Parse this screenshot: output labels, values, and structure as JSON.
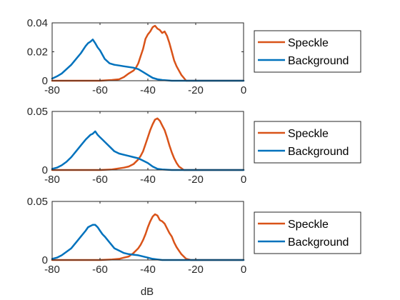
{
  "chart_data": {
    "type": "line",
    "xlabel": "dB",
    "xlim": [
      -80,
      0
    ],
    "xticks": [
      -80,
      -60,
      -40,
      -20,
      0
    ],
    "colors": {
      "speckle": "#D95319",
      "background": "#0072BD"
    },
    "legend_placement": "outside-right",
    "grid": false,
    "panels": [
      {
        "ylim": [
          0,
          0.04
        ],
        "yticks": [
          0,
          0.02,
          0.04
        ],
        "yticklabels": [
          "0",
          "0.02",
          "0.04"
        ],
        "legend": [
          "Speckle",
          "Background"
        ],
        "series": [
          {
            "name": "Speckle",
            "x": [
              -80,
              -60,
              -55,
              -52,
              -50,
              -48,
              -46,
              -45,
              -44,
              -43,
              -42,
              -41,
              -40,
              -39,
              -38,
              -37,
              -36,
              -35,
              -34,
              -33,
              -32,
              -31,
              -30,
              -29,
              -28,
              -27,
              -26,
              -25,
              -24,
              -20,
              0
            ],
            "y": [
              0,
              0,
              0.0005,
              0.001,
              0.0025,
              0.005,
              0.007,
              0.009,
              0.012,
              0.017,
              0.022,
              0.029,
              0.032,
              0.034,
              0.037,
              0.038,
              0.036,
              0.035,
              0.033,
              0.034,
              0.031,
              0.026,
              0.02,
              0.014,
              0.01,
              0.007,
              0.004,
              0.002,
              0,
              0,
              0
            ]
          },
          {
            "name": "Background",
            "x": [
              -80,
              -78,
              -76,
              -74,
              -72,
              -70,
              -68,
              -66,
              -65,
              -64,
              -63,
              -62,
              -61,
              -60,
              -59,
              -58,
              -56,
              -54,
              -52,
              -50,
              -48,
              -46,
              -44,
              -42,
              -40,
              -38,
              -36,
              -34,
              -30,
              -25,
              0
            ],
            "y": [
              0.0015,
              0.003,
              0.005,
              0.008,
              0.011,
              0.015,
              0.019,
              0.024,
              0.026,
              0.027,
              0.0285,
              0.026,
              0.023,
              0.021,
              0.018,
              0.015,
              0.012,
              0.011,
              0.0105,
              0.01,
              0.0095,
              0.009,
              0.008,
              0.006,
              0.004,
              0.002,
              0.001,
              0.0005,
              0,
              0,
              0
            ]
          }
        ]
      },
      {
        "ylim": [
          0,
          0.05
        ],
        "yticks": [
          0,
          0.05
        ],
        "yticklabels": [
          "0",
          "0.05"
        ],
        "legend": [
          "Speckle",
          "Background"
        ],
        "series": [
          {
            "name": "Speckle",
            "x": [
              -80,
              -60,
              -55,
              -50,
              -48,
              -46,
              -44,
              -43,
              -42,
              -41,
              -40,
              -39,
              -38,
              -37,
              -36,
              -35,
              -34,
              -33,
              -32,
              -31,
              -30,
              -29,
              -28,
              -27,
              -26,
              -25,
              -20,
              0
            ],
            "y": [
              0,
              0,
              0.0005,
              0.002,
              0.003,
              0.005,
              0.009,
              0.012,
              0.016,
              0.022,
              0.028,
              0.034,
              0.039,
              0.043,
              0.044,
              0.042,
              0.038,
              0.034,
              0.028,
              0.021,
              0.015,
              0.01,
              0.006,
              0.003,
              0.0015,
              0,
              0,
              0
            ]
          },
          {
            "name": "Background",
            "x": [
              -80,
              -78,
              -76,
              -74,
              -72,
              -70,
              -68,
              -66,
              -64,
              -63,
              -62,
              -61,
              -60,
              -59,
              -58,
              -56,
              -54,
              -52,
              -50,
              -48,
              -46,
              -44,
              -42,
              -40,
              -38,
              -36,
              -34,
              -30,
              0
            ],
            "y": [
              0.001,
              0.002,
              0.004,
              0.007,
              0.011,
              0.016,
              0.021,
              0.026,
              0.03,
              0.031,
              0.033,
              0.03,
              0.028,
              0.026,
              0.024,
              0.02,
              0.016,
              0.014,
              0.013,
              0.012,
              0.011,
              0.01,
              0.008,
              0.006,
              0.003,
              0.001,
              0.0005,
              0,
              0
            ]
          }
        ]
      },
      {
        "ylim": [
          0,
          0.05
        ],
        "yticks": [
          0,
          0.05
        ],
        "yticklabels": [
          "0",
          "0.05"
        ],
        "legend": [
          "Speckle",
          "Background"
        ],
        "series": [
          {
            "name": "Speckle",
            "x": [
              -80,
              -60,
              -55,
              -52,
              -50,
              -48,
              -46,
              -45,
              -44,
              -43,
              -42,
              -41,
              -40,
              -39,
              -38,
              -37,
              -36,
              -35,
              -34,
              -33,
              -32,
              -31,
              -30,
              -29,
              -28,
              -27,
              -26,
              -25,
              -24,
              -22,
              0
            ],
            "y": [
              0,
              0,
              0.0005,
              0.001,
              0.002,
              0.003,
              0.006,
              0.008,
              0.01,
              0.013,
              0.017,
              0.022,
              0.028,
              0.033,
              0.037,
              0.039,
              0.038,
              0.034,
              0.033,
              0.031,
              0.027,
              0.023,
              0.02,
              0.015,
              0.011,
              0.008,
              0.005,
              0.003,
              0.001,
              0,
              0
            ]
          },
          {
            "name": "Background",
            "x": [
              -80,
              -78,
              -76,
              -74,
              -72,
              -70,
              -68,
              -66,
              -65,
              -64,
              -63,
              -62,
              -61,
              -60,
              -59,
              -58,
              -56,
              -54,
              -52,
              -50,
              -48,
              -46,
              -44,
              -42,
              -40,
              -38,
              -36,
              -34,
              -30,
              0
            ],
            "y": [
              0.001,
              0.002,
              0.004,
              0.007,
              0.01,
              0.015,
              0.02,
              0.025,
              0.028,
              0.029,
              0.03,
              0.03,
              0.028,
              0.025,
              0.022,
              0.02,
              0.015,
              0.01,
              0.008,
              0.006,
              0.005,
              0.0045,
              0.004,
              0.003,
              0.002,
              0.001,
              0.0005,
              0,
              0,
              0
            ]
          }
        ]
      }
    ]
  }
}
